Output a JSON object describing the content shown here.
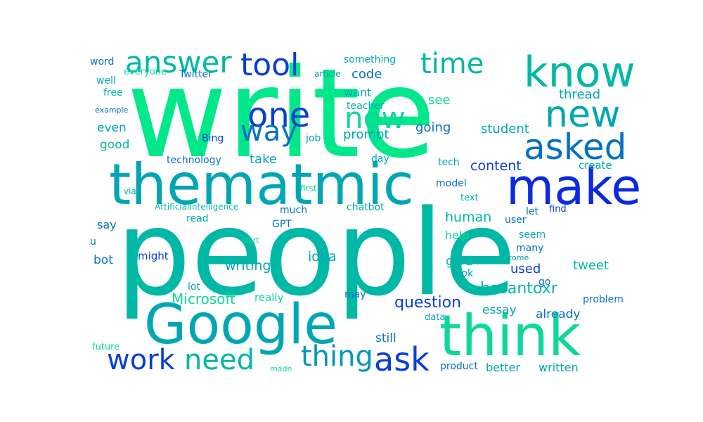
{
  "palette": {
    "green": "#00E88A",
    "mint": "#0FD79B",
    "teal": "#00B8A6",
    "cyan": "#00A7B3",
    "sea": "#0297B8",
    "blue": "#0670C4",
    "deep": "#0A3ED6",
    "royal": "#0B2AE0"
  },
  "words": [
    {
      "text": "people",
      "color": "teal"
    },
    {
      "text": "write",
      "color": "green"
    },
    {
      "text": "Google",
      "color": "cyan"
    },
    {
      "text": "think",
      "color": "mint"
    },
    {
      "text": "thematmic",
      "color": "cyan"
    },
    {
      "text": "make",
      "color": "royal"
    },
    {
      "text": "know",
      "color": "teal"
    },
    {
      "text": "new",
      "color": "cyan"
    },
    {
      "text": "asked",
      "color": "blue"
    },
    {
      "text": "one",
      "color": "deep"
    },
    {
      "text": "now",
      "color": "mint"
    },
    {
      "text": "way",
      "color": "blue"
    },
    {
      "text": "tool",
      "color": "deep"
    },
    {
      "text": "answer",
      "color": "teal"
    },
    {
      "text": "time",
      "color": "teal"
    },
    {
      "text": "ask",
      "color": "deep"
    },
    {
      "text": "thing",
      "color": "sea"
    },
    {
      "text": "need",
      "color": "teal"
    },
    {
      "text": "work",
      "color": "deep"
    },
    {
      "text": "Microsoft",
      "color": "mint"
    },
    {
      "text": "hasantoxr",
      "color": "teal"
    },
    {
      "text": "question",
      "color": "deep"
    },
    {
      "text": "content",
      "color": "deep"
    },
    {
      "text": "human",
      "color": "teal"
    },
    {
      "text": "writing",
      "color": "cyan"
    },
    {
      "text": "idea",
      "color": "cyan"
    },
    {
      "text": "prompt",
      "color": "cyan"
    },
    {
      "text": "going",
      "color": "blue"
    },
    {
      "text": "student",
      "color": "cyan"
    },
    {
      "text": "thread",
      "color": "cyan"
    },
    {
      "text": "code",
      "color": "blue"
    },
    {
      "text": "want",
      "color": "cyan"
    },
    {
      "text": "see",
      "color": "mint"
    },
    {
      "text": "even",
      "color": "cyan"
    },
    {
      "text": "good",
      "color": "teal"
    },
    {
      "text": "take",
      "color": "cyan"
    },
    {
      "text": "give",
      "color": "teal"
    },
    {
      "text": "used",
      "color": "deep"
    },
    {
      "text": "tweet",
      "color": "teal"
    },
    {
      "text": "essay",
      "color": "cyan"
    },
    {
      "text": "already",
      "color": "blue"
    },
    {
      "text": "still",
      "color": "blue"
    },
    {
      "text": "better",
      "color": "cyan"
    },
    {
      "text": "written",
      "color": "cyan"
    },
    {
      "text": "help",
      "color": "mint"
    },
    {
      "text": "bot",
      "color": "blue"
    },
    {
      "text": "say",
      "color": "blue"
    },
    {
      "text": "create",
      "color": "cyan"
    },
    {
      "text": "something",
      "color": "cyan"
    },
    {
      "text": "word",
      "color": "blue"
    },
    {
      "text": "everyone",
      "color": "mint"
    },
    {
      "text": "Twitter",
      "color": "blue"
    },
    {
      "text": "article",
      "color": "sea"
    },
    {
      "text": "well",
      "color": "cyan"
    },
    {
      "text": "free",
      "color": "teal"
    },
    {
      "text": "teacher",
      "color": "cyan"
    },
    {
      "text": "example",
      "color": "blue"
    },
    {
      "text": "Bing",
      "color": "deep"
    },
    {
      "text": "job",
      "color": "cyan"
    },
    {
      "text": "technology",
      "color": "blue"
    },
    {
      "text": "day",
      "color": "cyan"
    },
    {
      "text": "tech",
      "color": "cyan"
    },
    {
      "text": "via",
      "color": "teal"
    },
    {
      "text": "first",
      "color": "mint"
    },
    {
      "text": "model",
      "color": "blue"
    },
    {
      "text": "text",
      "color": "teal"
    },
    {
      "text": "ArtificialIntelligence",
      "color": "teal"
    },
    {
      "text": "chatbot",
      "color": "cyan"
    },
    {
      "text": "find",
      "color": "deep"
    },
    {
      "text": "let",
      "color": "blue"
    },
    {
      "text": "much",
      "color": "blue"
    },
    {
      "text": "read",
      "color": "cyan"
    },
    {
      "text": "GPT",
      "color": "blue"
    },
    {
      "text": "user",
      "color": "blue"
    },
    {
      "text": "seem",
      "color": "cyan"
    },
    {
      "text": "u",
      "color": "blue"
    },
    {
      "text": "start",
      "color": "mint"
    },
    {
      "text": "many",
      "color": "blue"
    },
    {
      "text": "might",
      "color": "deep"
    },
    {
      "text": "come",
      "color": "sea"
    },
    {
      "text": "look",
      "color": "cyan"
    },
    {
      "text": "go",
      "color": "blue"
    },
    {
      "text": "lot",
      "color": "cyan"
    },
    {
      "text": "really",
      "color": "mint"
    },
    {
      "text": "may",
      "color": "blue"
    },
    {
      "text": "problem",
      "color": "blue"
    },
    {
      "text": "data",
      "color": "cyan"
    },
    {
      "text": "future",
      "color": "mint"
    },
    {
      "text": "product",
      "color": "blue"
    },
    {
      "text": "made",
      "color": "mint"
    }
  ]
}
